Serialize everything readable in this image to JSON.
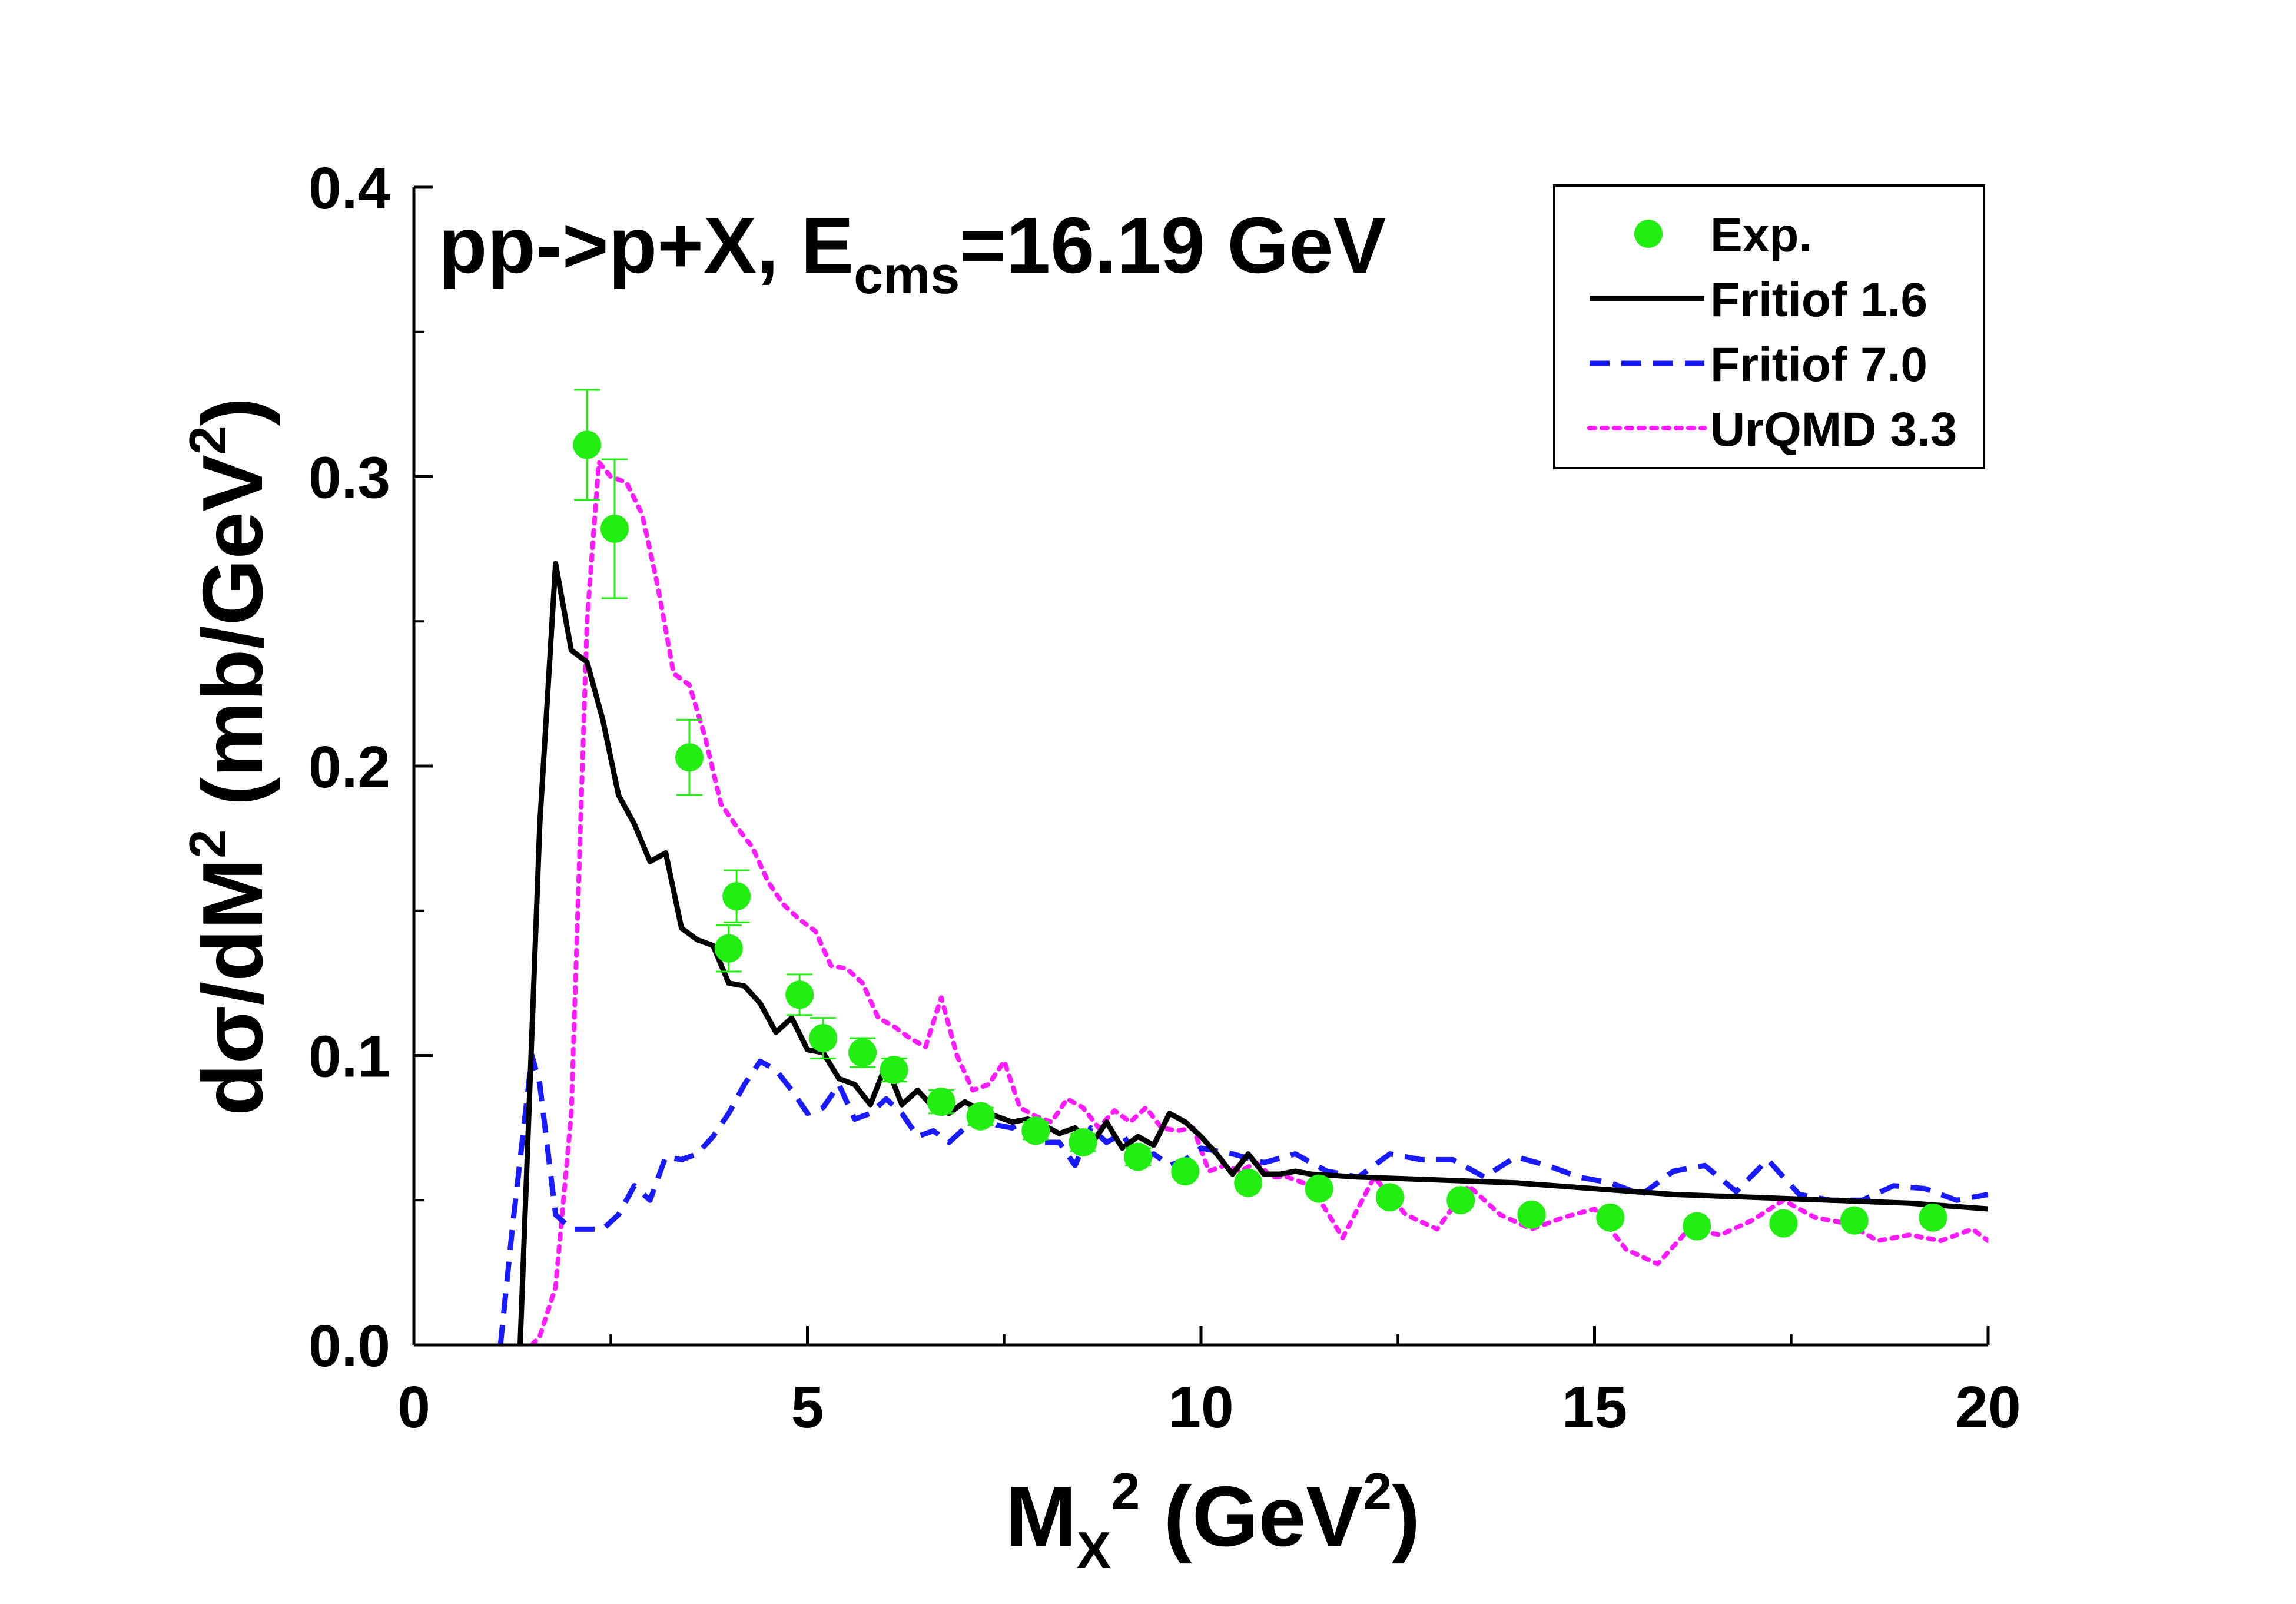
{
  "chart_data": {
    "type": "line",
    "title": {
      "prefix": "pp->p+X, E",
      "sub": "cms",
      "suffix": "=16.19 GeV"
    },
    "xlabel": {
      "base": "M",
      "sub": "X",
      "sup": "2",
      "rest_open": " (GeV",
      "unit_sup": "2",
      "rest_close": ")"
    },
    "ylabel": {
      "prefix": "d",
      "sigma": "σ",
      "mid": "/dM",
      "sup": "2",
      "rest_open": " (mb/GeV",
      "unit_sup": "2",
      "rest_close": ")"
    },
    "xlim": [
      0,
      20
    ],
    "ylim": [
      0,
      0.4
    ],
    "x_ticks": [
      {
        "value": 0,
        "label": "0"
      },
      {
        "value": 5,
        "label": "5"
      },
      {
        "value": 10,
        "label": "10"
      },
      {
        "value": 15,
        "label": "15"
      },
      {
        "value": 20,
        "label": "20"
      }
    ],
    "y_ticks": [
      {
        "value": 0,
        "label": "0.0"
      },
      {
        "value": 0.1,
        "label": "0.1"
      },
      {
        "value": 0.2,
        "label": "0.2"
      },
      {
        "value": 0.3,
        "label": "0.3"
      },
      {
        "value": 0.4,
        "label": "0.4"
      }
    ],
    "grid": false,
    "legend_position": "top-right",
    "series": [
      {
        "name": "Exp.",
        "kind": "scatter",
        "color": "#22ee11",
        "points": [
          {
            "x": 2.2,
            "y": 0.311,
            "err": 0.019
          },
          {
            "x": 2.55,
            "y": 0.282,
            "err": 0.024
          },
          {
            "x": 3.5,
            "y": 0.203,
            "err": 0.013
          },
          {
            "x": 4.0,
            "y": 0.137,
            "err": 0.008
          },
          {
            "x": 4.1,
            "y": 0.155,
            "err": 0.009
          },
          {
            "x": 4.9,
            "y": 0.121,
            "err": 0.007
          },
          {
            "x": 5.2,
            "y": 0.106,
            "err": 0.007
          },
          {
            "x": 5.7,
            "y": 0.101,
            "err": 0.005
          },
          {
            "x": 6.1,
            "y": 0.095,
            "err": 0.004
          },
          {
            "x": 6.7,
            "y": 0.084,
            "err": 0.004
          },
          {
            "x": 7.2,
            "y": 0.079,
            "err": 0.003
          },
          {
            "x": 7.9,
            "y": 0.074,
            "err": 0.003
          },
          {
            "x": 8.5,
            "y": 0.07,
            "err": 0.003
          },
          {
            "x": 9.2,
            "y": 0.065,
            "err": 0.003
          },
          {
            "x": 9.8,
            "y": 0.06,
            "err": 0.002
          },
          {
            "x": 10.6,
            "y": 0.056,
            "err": 0.002
          },
          {
            "x": 11.5,
            "y": 0.054,
            "err": 0.002
          },
          {
            "x": 12.4,
            "y": 0.051,
            "err": 0.002
          },
          {
            "x": 13.3,
            "y": 0.05,
            "err": 0.002
          },
          {
            "x": 14.2,
            "y": 0.045,
            "err": 0.002
          },
          {
            "x": 15.2,
            "y": 0.044,
            "err": 0.002
          },
          {
            "x": 16.3,
            "y": 0.041,
            "err": 0.002
          },
          {
            "x": 17.4,
            "y": 0.042,
            "err": 0.002
          },
          {
            "x": 18.3,
            "y": 0.043,
            "err": 0.002
          },
          {
            "x": 19.3,
            "y": 0.044,
            "err": 0.002
          }
        ]
      },
      {
        "name": "Fritiof 1.6",
        "kind": "line",
        "color": "#000000",
        "dash": "solid",
        "x": [
          1.35,
          1.6,
          1.8,
          2.0,
          2.2,
          2.4,
          2.6,
          2.8,
          3.0,
          3.2,
          3.4,
          3.6,
          3.8,
          4.0,
          4.2,
          4.4,
          4.6,
          4.8,
          5.0,
          5.2,
          5.4,
          5.6,
          5.8,
          6.0,
          6.2,
          6.4,
          6.6,
          6.8,
          7.0,
          7.2,
          7.4,
          7.6,
          7.8,
          8.0,
          8.2,
          8.4,
          8.6,
          8.8,
          9.0,
          9.2,
          9.4,
          9.6,
          9.8,
          10.0,
          10.2,
          10.4,
          10.6,
          10.8,
          11.0,
          11.2,
          11.4,
          12.0,
          13.0,
          14.0,
          15.0,
          16.0,
          17.0,
          18.0,
          19.0,
          20.0
        ],
        "values": [
          0.0,
          0.18,
          0.27,
          0.24,
          0.236,
          0.216,
          0.19,
          0.18,
          0.167,
          0.17,
          0.144,
          0.14,
          0.138,
          0.125,
          0.124,
          0.118,
          0.108,
          0.113,
          0.102,
          0.101,
          0.092,
          0.09,
          0.083,
          0.097,
          0.083,
          0.088,
          0.082,
          0.08,
          0.084,
          0.081,
          0.079,
          0.077,
          0.078,
          0.076,
          0.073,
          0.075,
          0.069,
          0.077,
          0.068,
          0.072,
          0.069,
          0.08,
          0.077,
          0.072,
          0.066,
          0.059,
          0.066,
          0.059,
          0.059,
          0.06,
          0.059,
          0.058,
          0.057,
          0.056,
          0.054,
          0.052,
          0.051,
          0.05,
          0.049,
          0.047
        ]
      },
      {
        "name": "Fritiof 7.0",
        "kind": "line",
        "color": "#1a1aff",
        "dash": "dashed",
        "x": [
          1.1,
          1.25,
          1.5,
          1.6,
          1.8,
          2.0,
          2.4,
          2.6,
          2.8,
          3.0,
          3.2,
          3.4,
          3.6,
          3.8,
          4.0,
          4.2,
          4.4,
          4.6,
          4.8,
          5.0,
          5.2,
          5.4,
          5.6,
          5.8,
          6.0,
          6.2,
          6.4,
          6.6,
          6.8,
          7.0,
          7.2,
          7.4,
          7.6,
          7.8,
          8.0,
          8.2,
          8.4,
          8.6,
          8.8,
          9.0,
          9.2,
          9.4,
          9.6,
          9.8,
          10.0,
          10.4,
          10.8,
          11.2,
          11.6,
          12.0,
          12.4,
          12.8,
          13.2,
          13.6,
          14.0,
          14.4,
          14.8,
          15.2,
          15.6,
          16.0,
          16.4,
          16.8,
          17.2,
          17.6,
          18.0,
          18.4,
          18.8,
          19.2,
          19.6,
          20.0
        ],
        "values": [
          0.0,
          0.04,
          0.1,
          0.09,
          0.045,
          0.04,
          0.04,
          0.045,
          0.055,
          0.05,
          0.065,
          0.064,
          0.066,
          0.072,
          0.08,
          0.09,
          0.098,
          0.095,
          0.088,
          0.08,
          0.082,
          0.09,
          0.078,
          0.08,
          0.085,
          0.08,
          0.072,
          0.074,
          0.07,
          0.075,
          0.08,
          0.076,
          0.075,
          0.078,
          0.07,
          0.07,
          0.062,
          0.075,
          0.07,
          0.073,
          0.064,
          0.066,
          0.062,
          0.064,
          0.068,
          0.066,
          0.063,
          0.066,
          0.06,
          0.058,
          0.066,
          0.064,
          0.064,
          0.058,
          0.065,
          0.062,
          0.058,
          0.056,
          0.052,
          0.06,
          0.062,
          0.053,
          0.064,
          0.052,
          0.05,
          0.05,
          0.055,
          0.054,
          0.05,
          0.052
        ]
      },
      {
        "name": "UrQMD 3.3",
        "kind": "line",
        "color": "#ff1aff",
        "dash": "dotted",
        "x": [
          1.5,
          1.6,
          1.8,
          2.0,
          2.2,
          2.35,
          2.5,
          2.7,
          2.9,
          3.1,
          3.3,
          3.5,
          3.7,
          3.9,
          4.1,
          4.3,
          4.5,
          4.7,
          4.9,
          5.1,
          5.3,
          5.5,
          5.7,
          5.9,
          6.1,
          6.3,
          6.5,
          6.7,
          6.9,
          7.1,
          7.3,
          7.5,
          7.7,
          7.9,
          8.1,
          8.3,
          8.5,
          8.7,
          8.9,
          9.1,
          9.3,
          9.5,
          9.7,
          9.9,
          10.1,
          10.3,
          10.5,
          10.7,
          10.9,
          11.1,
          11.4,
          11.8,
          12.2,
          12.6,
          13.0,
          13.4,
          13.8,
          14.2,
          14.6,
          15.0,
          15.4,
          15.8,
          16.2,
          16.6,
          17.0,
          17.4,
          17.8,
          18.2,
          18.6,
          19.0,
          19.4,
          19.8,
          20.0
        ],
        "values": [
          0.0,
          0.003,
          0.02,
          0.08,
          0.25,
          0.305,
          0.3,
          0.298,
          0.287,
          0.262,
          0.232,
          0.228,
          0.21,
          0.187,
          0.179,
          0.172,
          0.16,
          0.152,
          0.147,
          0.143,
          0.131,
          0.13,
          0.125,
          0.113,
          0.11,
          0.106,
          0.103,
          0.12,
          0.1,
          0.088,
          0.09,
          0.098,
          0.082,
          0.079,
          0.077,
          0.085,
          0.082,
          0.075,
          0.081,
          0.077,
          0.082,
          0.075,
          0.074,
          0.075,
          0.06,
          0.062,
          0.06,
          0.063,
          0.058,
          0.058,
          0.055,
          0.037,
          0.058,
          0.045,
          0.04,
          0.055,
          0.045,
          0.04,
          0.044,
          0.047,
          0.033,
          0.028,
          0.04,
          0.038,
          0.043,
          0.05,
          0.044,
          0.042,
          0.036,
          0.038,
          0.036,
          0.04,
          0.036
        ]
      }
    ]
  }
}
